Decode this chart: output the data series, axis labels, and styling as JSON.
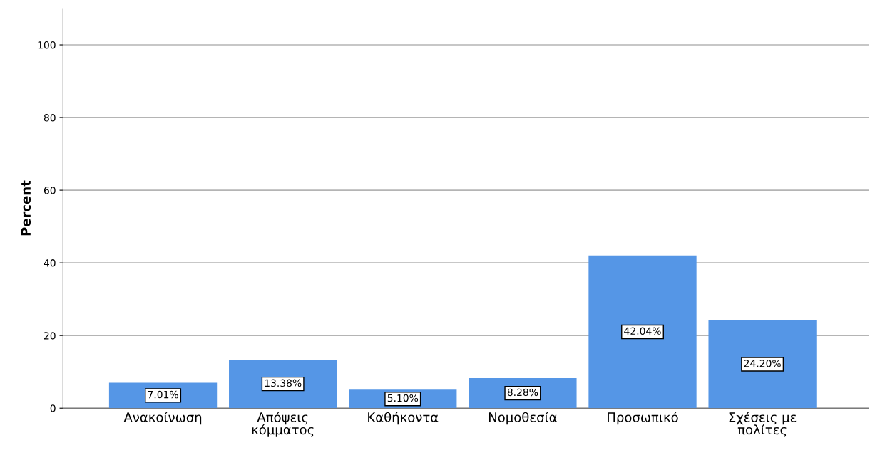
{
  "chart_data": {
    "type": "bar",
    "ylabel": "Percent",
    "categories": [
      "Ανακοίνωση",
      "Απόψεις\nκόμματος",
      "Καθήκοντα",
      "Νομοθεσία",
      "Προσωπικό",
      "Σχέσεις με\nπολίτες"
    ],
    "values": [
      7.01,
      13.38,
      5.1,
      8.28,
      42.04,
      24.2
    ],
    "value_labels": [
      "7.01%",
      "13.38%",
      "5.10%",
      "8.28%",
      "42.04%",
      "24.20%"
    ],
    "color": "#5596e6",
    "ylim": [
      0,
      110
    ],
    "yticks": [
      0,
      20,
      40,
      60,
      80,
      100
    ],
    "grid": "y"
  }
}
